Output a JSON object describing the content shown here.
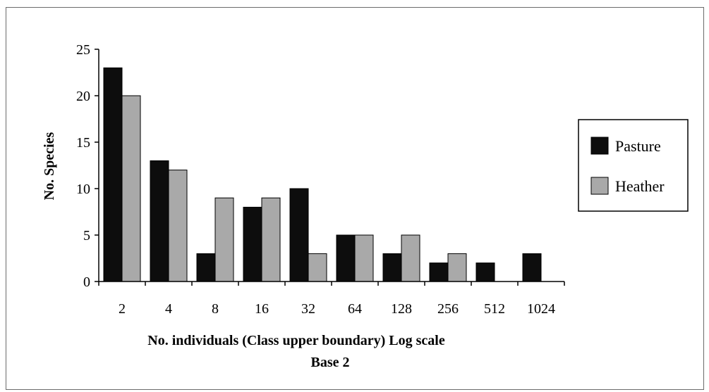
{
  "chart_data": {
    "type": "bar",
    "categories": [
      "2",
      "4",
      "8",
      "16",
      "32",
      "64",
      "128",
      "256",
      "512",
      "1024"
    ],
    "series": [
      {
        "name": "Pasture",
        "values": [
          23,
          13,
          3,
          8,
          10,
          5,
          3,
          2,
          2,
          3
        ],
        "color": "#0d0d0d"
      },
      {
        "name": "Heather",
        "values": [
          20,
          12,
          9,
          9,
          3,
          5,
          5,
          3,
          null,
          null
        ],
        "color": "#a9a9a9"
      }
    ],
    "title": "",
    "xlabel_line1": "No. individuals (Class upper boundary) Log scale",
    "xlabel_line2": "Base 2",
    "ylabel": "No. Species",
    "ylim": [
      0,
      25
    ],
    "yticks": [
      0,
      5,
      10,
      15,
      20,
      25
    ],
    "grid": false,
    "legend_position": "right"
  }
}
